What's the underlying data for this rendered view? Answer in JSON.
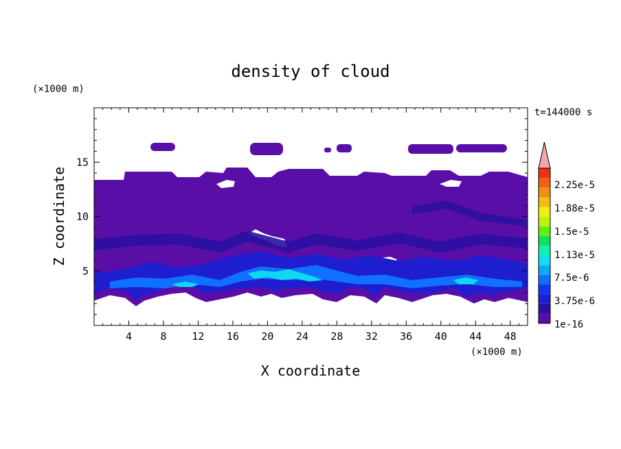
{
  "chart_data": {
    "type": "heatmap",
    "title": "density of cloud",
    "xlabel": "X coordinate",
    "ylabel": "Z coordinate",
    "x_unit": "(×1000 m)",
    "y_unit": "(×1000 m)",
    "time_label": "t=144000 s",
    "xlim": [
      0,
      50
    ],
    "ylim": [
      0,
      20
    ],
    "x_ticks": [
      4,
      8,
      12,
      16,
      20,
      24,
      28,
      32,
      36,
      40,
      44,
      48
    ],
    "y_ticks": [
      5,
      10,
      15
    ],
    "colorbar": {
      "labels": [
        {
          "value": 2.25e-05,
          "text": "2.25e-5"
        },
        {
          "value": 1.88e-05,
          "text": "1.88e-5"
        },
        {
          "value": 1.5e-05,
          "text": "1.5e-5"
        },
        {
          "value": 1.13e-05,
          "text": "1.13e-5"
        },
        {
          "value": 7.5e-06,
          "text": "7.5e-6"
        },
        {
          "value": 3.75e-06,
          "text": "3.75e-6"
        },
        {
          "value": 1e-16,
          "text": "1e-16"
        }
      ],
      "colors_bottom_to_top": [
        "#5a0ea8",
        "#2a10a0",
        "#1e1ed0",
        "#1038f0",
        "#1070ff",
        "#10a8ff",
        "#10e0f0",
        "#10f0b0",
        "#10e060",
        "#60f010",
        "#c0f010",
        "#f0f010",
        "#f0c010",
        "#f09010",
        "#f06010",
        "#f03010"
      ],
      "extend_color": "#f0a8a8"
    },
    "regions": {
      "base_cloud_layer": {
        "x": [
          0,
          50
        ],
        "z": [
          2.5,
          13.5
        ],
        "level": 1e-16
      },
      "upper_patches": [
        {
          "x": [
            7,
            9.5
          ],
          "z": [
            15.5,
            16.6
          ]
        },
        {
          "x": [
            18.5,
            22
          ],
          "z": [
            15.6,
            16.6
          ]
        },
        {
          "x": [
            26.5,
            27
          ],
          "z": [
            15.7,
            16.2
          ]
        },
        {
          "x": [
            27.5,
            29
          ],
          "z": [
            15.6,
            16.4
          ]
        },
        {
          "x": [
            37.5,
            43
          ],
          "z": [
            15.6,
            16.4
          ]
        },
        {
          "x": [
            43,
            48.5
          ],
          "z": [
            15.5,
            16.4
          ]
        }
      ],
      "max_density_band": {
        "x": [
          18,
          26
        ],
        "z": [
          4,
          6
        ],
        "level": 1.13e-05
      }
    }
  }
}
